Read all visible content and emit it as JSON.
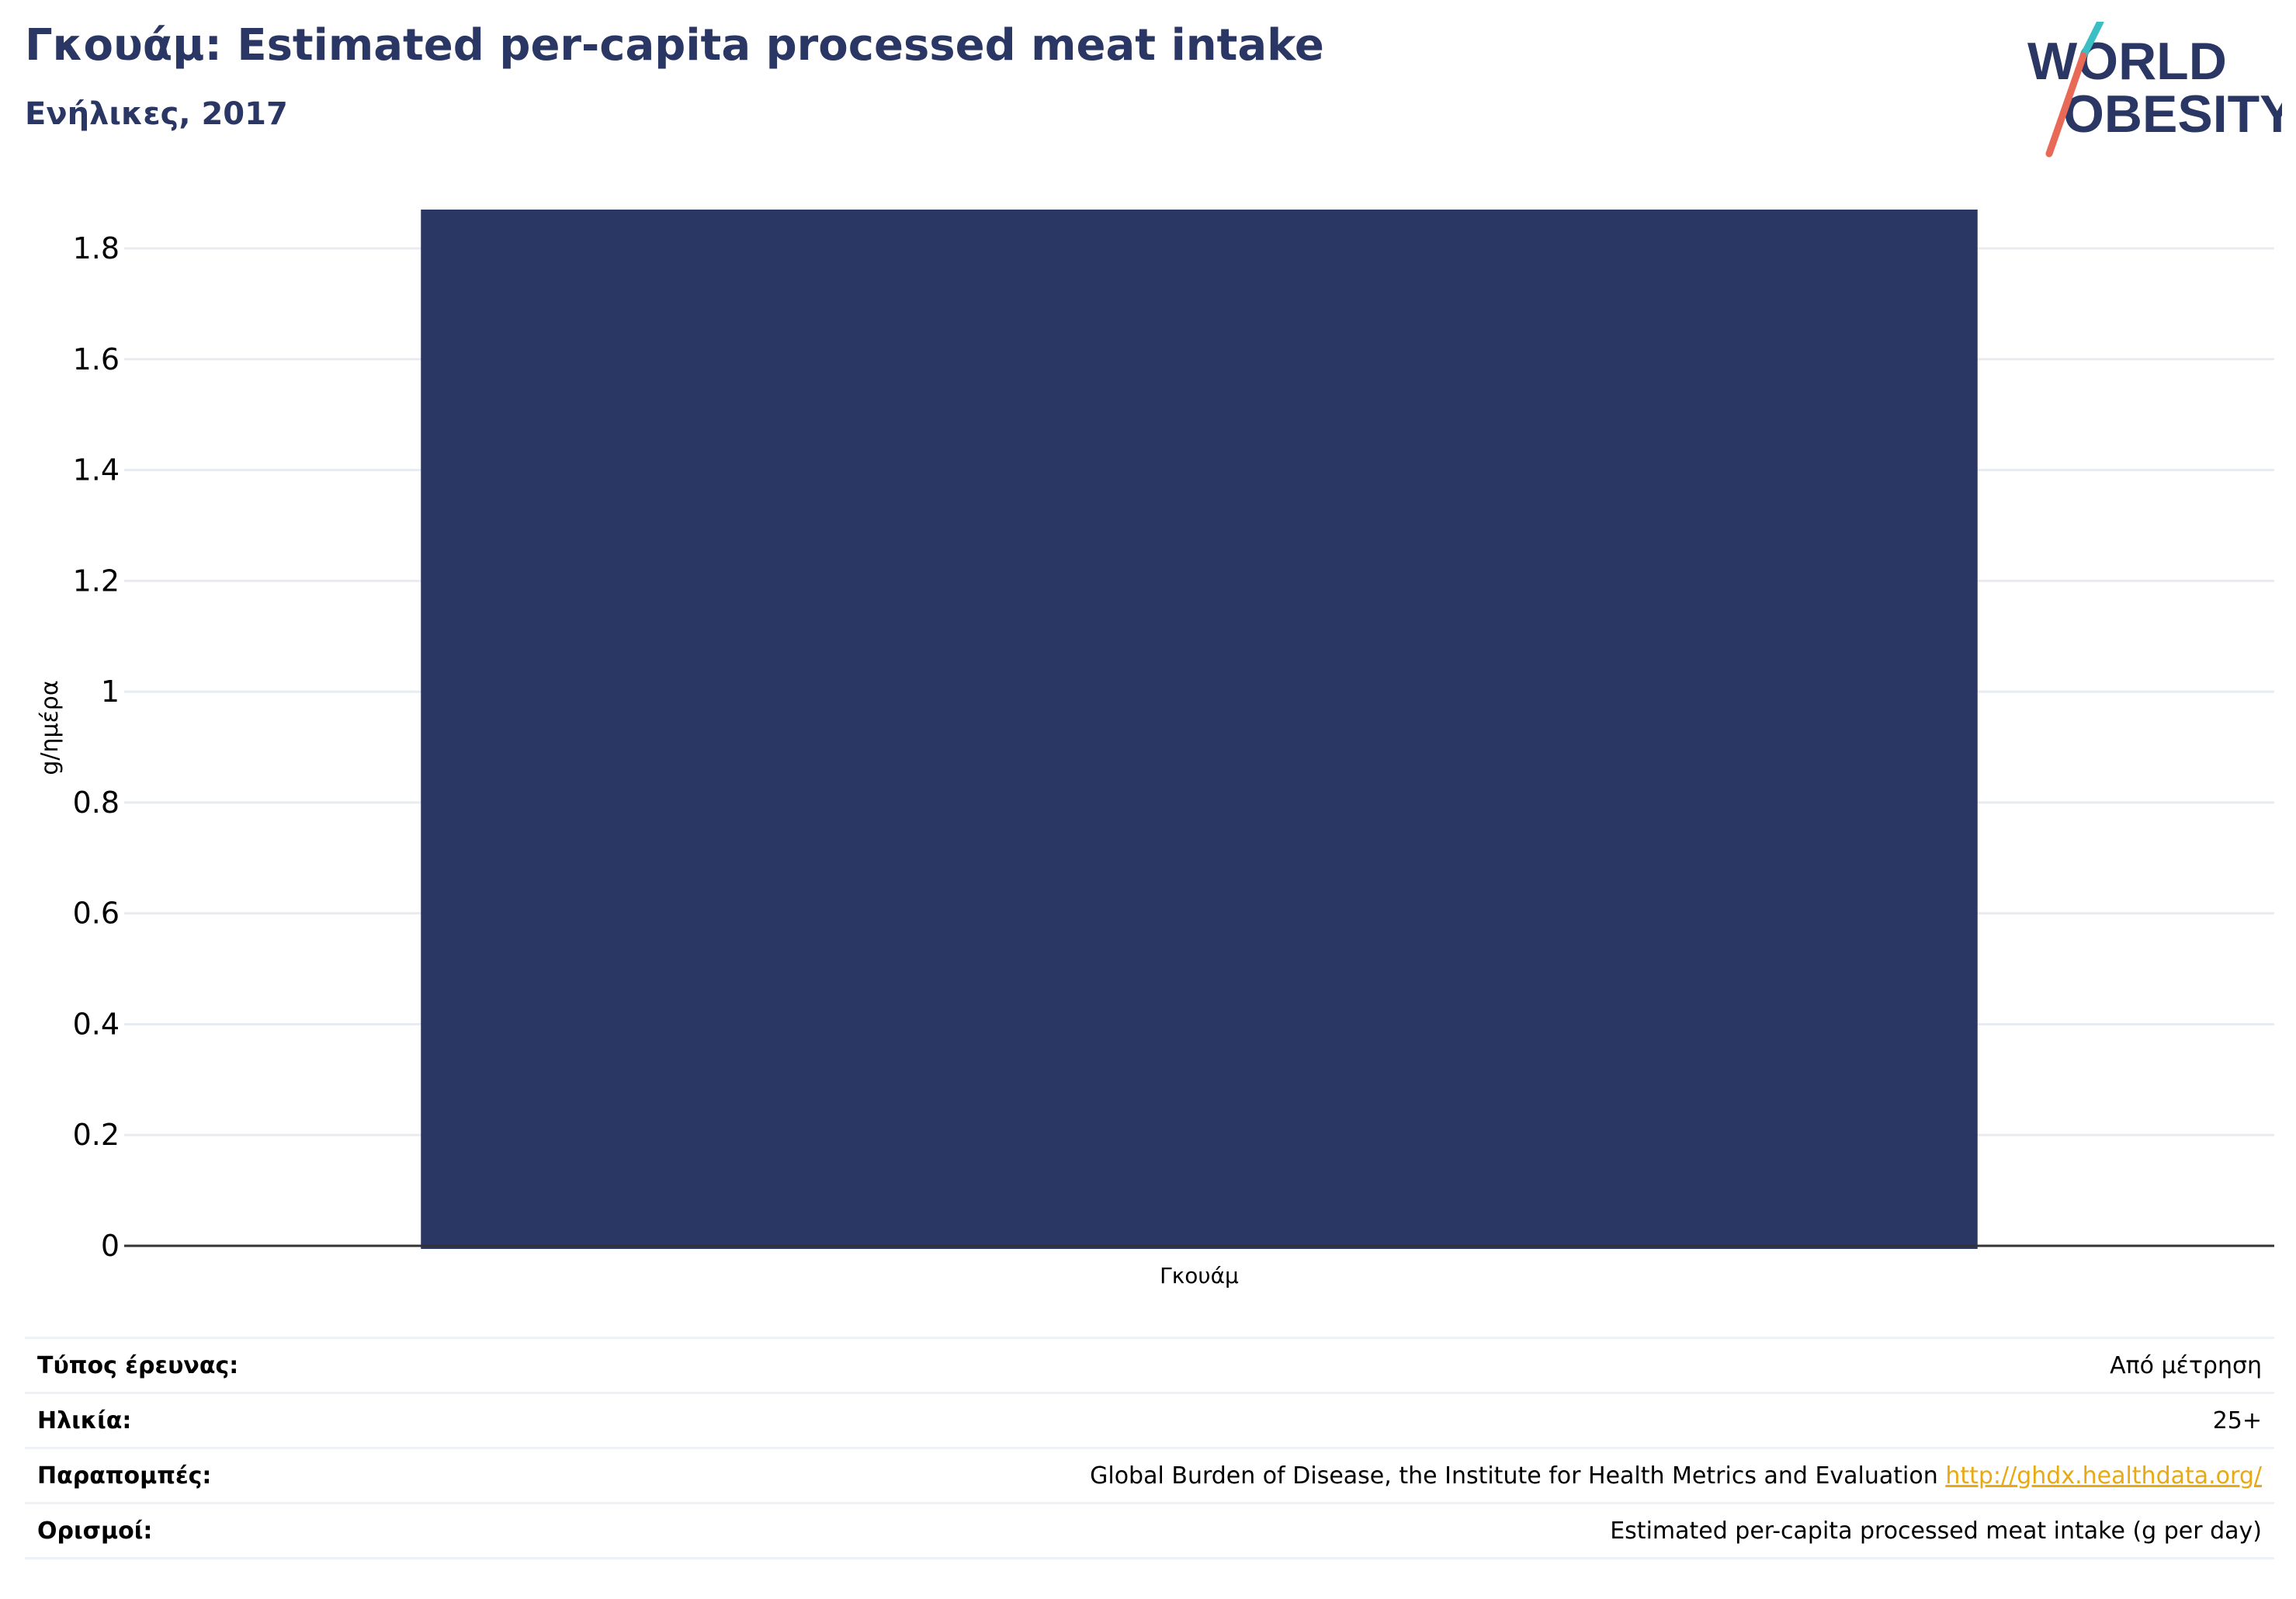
{
  "header": {
    "title": "Γκουάμ: Estimated per-capita processed meat intake",
    "subtitle": "Ενήλικες, 2017"
  },
  "logo": {
    "line1": "WORLD",
    "line2": "OBESITY",
    "colors": {
      "navy": "#2a3663",
      "teal": "#3bbfc5",
      "coral": "#e86a56"
    }
  },
  "chart_data": {
    "type": "bar",
    "categories": [
      "Γκουάμ"
    ],
    "values": [
      1.87
    ],
    "ylabel": "g/ημέρα",
    "xlabel": "",
    "ylim": [
      0,
      1.87
    ],
    "yticks": [
      0,
      0.2,
      0.4,
      0.6,
      0.8,
      1,
      1.2,
      1.4,
      1.6,
      1.8
    ],
    "ytick_labels": [
      "0",
      "0.2",
      "0.4",
      "0.6",
      "0.8",
      "1",
      "1.2",
      "1.4",
      "1.6",
      "1.8"
    ],
    "grid": true,
    "bar_color": "#2a3663"
  },
  "meta": {
    "rows": [
      {
        "label": "Τύπος έρευνας:",
        "value": "Από μέτρηση"
      },
      {
        "label": "Ηλικία:",
        "value": "25+"
      },
      {
        "label": "Παραπομπές:",
        "value": "Global Burden of Disease, the Institute for Health Metrics and Evaluation",
        "link": "http://ghdx.healthdata.org/"
      },
      {
        "label": "Ορισμοί:",
        "value": "Estimated per-capita processed meat intake (g per day)"
      }
    ]
  }
}
